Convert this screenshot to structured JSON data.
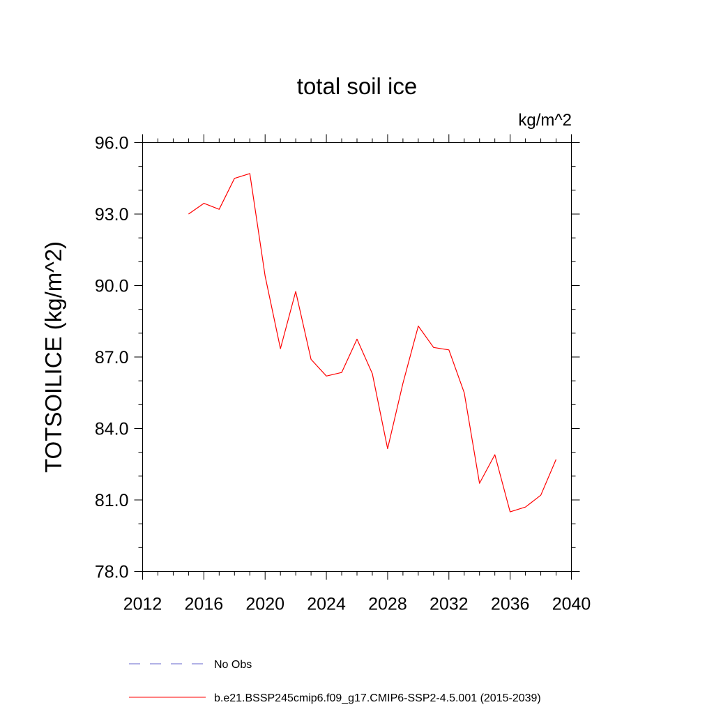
{
  "chart_data": {
    "type": "line",
    "title": "total soil ice",
    "units": "kg/m^2",
    "ylabel": "TOTSOILICE  (kg/m^2)",
    "xlabel": "",
    "xlim": [
      2012,
      2040
    ],
    "ylim": [
      78.0,
      96.0
    ],
    "xticks": [
      2012,
      2016,
      2020,
      2024,
      2028,
      2032,
      2036,
      2040
    ],
    "yticks": [
      "78.0",
      "81.0",
      "84.0",
      "87.0",
      "90.0",
      "93.0",
      "96.0"
    ],
    "grid": false,
    "legend_position": "bottom",
    "series": [
      {
        "name": "b.e21.BSSP245cmip6.f09_g17.CMIP6-SSP2-4.5.001 (2015-2039)",
        "color": "#ff0000",
        "style": "solid",
        "x": [
          2015,
          2016,
          2017,
          2018,
          2019,
          2020,
          2021,
          2022,
          2023,
          2024,
          2025,
          2026,
          2027,
          2028,
          2029,
          2030,
          2031,
          2032,
          2033,
          2034,
          2035,
          2036,
          2037,
          2038,
          2039
        ],
        "y": [
          93.0,
          93.45,
          93.2,
          94.5,
          94.7,
          90.4,
          87.35,
          89.75,
          86.9,
          86.2,
          86.35,
          87.75,
          86.3,
          83.15,
          85.9,
          88.3,
          87.4,
          87.3,
          85.5,
          81.7,
          82.9,
          80.5,
          80.7,
          81.2,
          82.7
        ]
      }
    ],
    "legend": [
      {
        "label": "No Obs",
        "color": "#6666cc",
        "style": "dashed"
      },
      {
        "label": "b.e21.BSSP245cmip6.f09_g17.CMIP6-SSP2-4.5.001 (2015-2039)",
        "color": "#ff0000",
        "style": "solid"
      }
    ]
  }
}
